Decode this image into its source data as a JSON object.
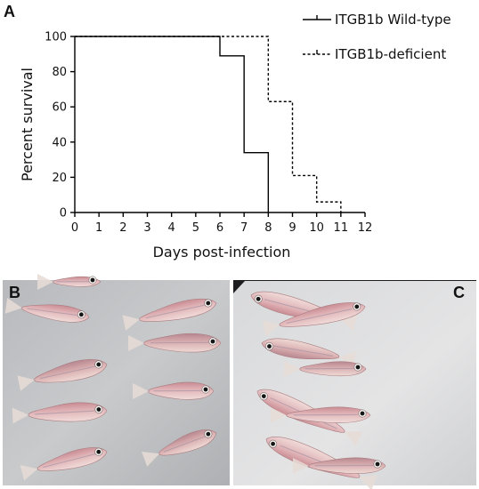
{
  "panels": {
    "chart_letter": "A",
    "photo_left_letter": "B",
    "photo_right_letter": "C"
  },
  "chart_data": {
    "type": "line",
    "step": true,
    "xlabel": "Days post-infection",
    "ylabel": "Percent survival",
    "xlim": [
      0,
      12
    ],
    "ylim": [
      0,
      100
    ],
    "x_ticks": [
      0,
      1,
      2,
      3,
      4,
      5,
      6,
      7,
      8,
      9,
      10,
      11,
      12
    ],
    "y_ticks": [
      0,
      20,
      40,
      60,
      80,
      100
    ],
    "grid": false,
    "legend_position": "top-right",
    "series": [
      {
        "name": "ITGB1b Wild-type",
        "line_style": "solid",
        "color": "#000000",
        "x": [
          0,
          6,
          7,
          8
        ],
        "y": [
          100,
          89,
          34,
          0
        ]
      },
      {
        "name": "ITGB1b-deficient",
        "line_style": "dashed",
        "color": "#000000",
        "x": [
          0,
          8,
          9,
          10,
          11
        ],
        "y": [
          100,
          63,
          21,
          6,
          0
        ]
      }
    ]
  },
  "photos": {
    "left_fish_count": 8,
    "right_fish_count": 8
  }
}
